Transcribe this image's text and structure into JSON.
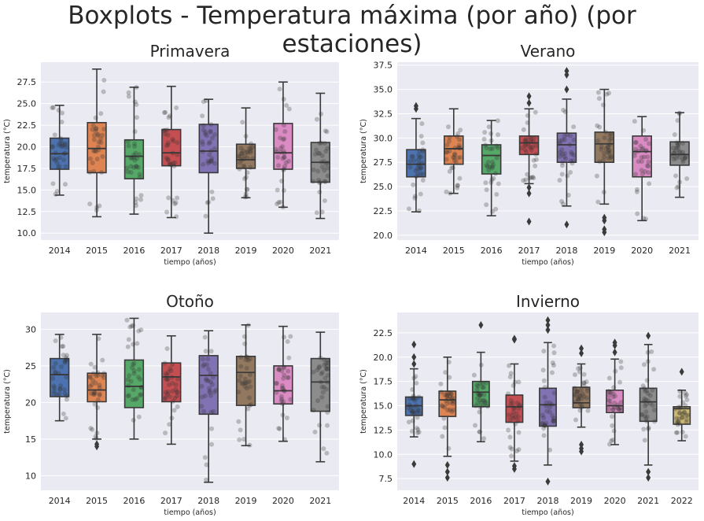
{
  "suptitle": "Boxplots - Temperatura máxima (por año) (por estaciones)",
  "colors": {
    "background": "#eaeaf2",
    "grid": "#ffffff",
    "box_palette": [
      "#4c72b0",
      "#dd8452",
      "#55a868",
      "#c44e52",
      "#8172b3",
      "#937860",
      "#da8bc3",
      "#8c8c8c",
      "#ccb974"
    ],
    "points": "#333333"
  },
  "chart_data": [
    {
      "type": "box",
      "title": "Primavera",
      "xlabel": "tiempo (años)",
      "ylabel": "temperatura (°C)",
      "ylim": [
        9.2,
        29.8
      ],
      "yticks": [
        "10.0",
        "12.5",
        "15.0",
        "17.5",
        "20.0",
        "22.5",
        "25.0",
        "27.5"
      ],
      "grid": true,
      "categories": [
        "2014",
        "2015",
        "2016",
        "2017",
        "2018",
        "2019",
        "2020",
        "2021"
      ],
      "boxes": [
        {
          "min": 14.4,
          "q1": 17.4,
          "median": 19.2,
          "q3": 21.0,
          "max": 24.8,
          "outliers": []
        },
        {
          "min": 11.9,
          "q1": 17.0,
          "median": 19.8,
          "q3": 22.8,
          "max": 29.0,
          "outliers": []
        },
        {
          "min": 12.2,
          "q1": 16.3,
          "median": 18.9,
          "q3": 20.8,
          "max": 26.9,
          "outliers": []
        },
        {
          "min": 11.8,
          "q1": 17.8,
          "median": 19.3,
          "q3": 22.0,
          "max": 27.0,
          "outliers": []
        },
        {
          "min": 10.0,
          "q1": 17.0,
          "median": 19.5,
          "q3": 22.6,
          "max": 25.5,
          "outliers": []
        },
        {
          "min": 14.1,
          "q1": 17.5,
          "median": 18.5,
          "q3": 20.3,
          "max": 24.5,
          "outliers": []
        },
        {
          "min": 13.0,
          "q1": 17.4,
          "median": 19.3,
          "q3": 22.7,
          "max": 27.5,
          "outliers": []
        },
        {
          "min": 11.7,
          "q1": 15.9,
          "median": 18.2,
          "q3": 20.5,
          "max": 26.2,
          "outliers": []
        }
      ]
    },
    {
      "type": "box",
      "title": "Verano",
      "xlabel": "tiempo (años)",
      "ylabel": "temperatura (°C)",
      "ylim": [
        19.5,
        37.8
      ],
      "yticks": [
        "20.0",
        "22.5",
        "25.0",
        "27.5",
        "30.0",
        "32.5",
        "35.0",
        "37.5"
      ],
      "grid": true,
      "categories": [
        "2014",
        "2015",
        "2016",
        "2017",
        "2018",
        "2019",
        "2020",
        "2021"
      ],
      "boxes": [
        {
          "min": 22.4,
          "q1": 26.0,
          "median": 27.3,
          "q3": 28.8,
          "max": 32.0,
          "outliers": [
            33.0,
            33.3
          ]
        },
        {
          "min": 24.3,
          "q1": 27.3,
          "median": 28.9,
          "q3": 30.2,
          "max": 33.0,
          "outliers": []
        },
        {
          "min": 22.0,
          "q1": 26.3,
          "median": 28.2,
          "q3": 29.3,
          "max": 31.8,
          "outliers": []
        },
        {
          "min": 25.3,
          "q1": 28.3,
          "median": 29.5,
          "q3": 30.2,
          "max": 33.0,
          "outliers": [
            21.4,
            24.3,
            24.9,
            33.6,
            34.3
          ]
        },
        {
          "min": 23.0,
          "q1": 27.5,
          "median": 29.3,
          "q3": 30.5,
          "max": 34.0,
          "outliers": [
            21.1,
            35.0,
            36.5,
            36.9
          ]
        },
        {
          "min": 23.2,
          "q1": 27.5,
          "median": 29.4,
          "q3": 30.6,
          "max": 35.0,
          "outliers": [
            20.3,
            20.6,
            21.5,
            21.8
          ]
        },
        {
          "min": 21.5,
          "q1": 26.0,
          "median": 28.6,
          "q3": 30.2,
          "max": 32.2,
          "outliers": []
        },
        {
          "min": 23.9,
          "q1": 27.2,
          "median": 28.3,
          "q3": 29.6,
          "max": 32.6,
          "outliers": []
        }
      ]
    },
    {
      "type": "box",
      "title": "Otoño",
      "xlabel": "tiempo (años)",
      "ylabel": "temperatura (°C)",
      "ylim": [
        8.0,
        32.3
      ],
      "yticks": [
        "10",
        "15",
        "20",
        "25",
        "30"
      ],
      "grid": true,
      "categories": [
        "2014",
        "2015",
        "2016",
        "2017",
        "2018",
        "2019",
        "2020",
        "2021"
      ],
      "boxes": [
        {
          "min": 17.5,
          "q1": 20.8,
          "median": 23.8,
          "q3": 26.0,
          "max": 29.3,
          "outliers": []
        },
        {
          "min": 15.0,
          "q1": 20.1,
          "median": 21.7,
          "q3": 24.0,
          "max": 29.3,
          "outliers": [
            14.0,
            14.3
          ]
        },
        {
          "min": 15.0,
          "q1": 19.3,
          "median": 22.2,
          "q3": 25.8,
          "max": 31.5,
          "outliers": []
        },
        {
          "min": 14.3,
          "q1": 20.1,
          "median": 23.5,
          "q3": 25.4,
          "max": 29.1,
          "outliers": []
        },
        {
          "min": 9.1,
          "q1": 18.4,
          "median": 23.7,
          "q3": 26.4,
          "max": 29.8,
          "outliers": []
        },
        {
          "min": 14.1,
          "q1": 19.6,
          "median": 24.1,
          "q3": 26.3,
          "max": 30.6,
          "outliers": []
        },
        {
          "min": 14.7,
          "q1": 19.8,
          "median": 21.6,
          "q3": 25.0,
          "max": 30.4,
          "outliers": []
        },
        {
          "min": 11.9,
          "q1": 18.8,
          "median": 22.8,
          "q3": 26.0,
          "max": 29.6,
          "outliers": []
        }
      ]
    },
    {
      "type": "box",
      "title": "Invierno",
      "xlabel": "tiempo (años)",
      "ylabel": "temperatura (°C)",
      "ylim": [
        6.3,
        24.6
      ],
      "yticks": [
        "7.5",
        "10.0",
        "12.5",
        "15.0",
        "17.5",
        "20.0",
        "22.5"
      ],
      "grid": true,
      "categories": [
        "2014",
        "2015",
        "2016",
        "2017",
        "2018",
        "2019",
        "2020",
        "2021",
        "2022"
      ],
      "boxes": [
        {
          "min": 11.8,
          "q1": 14.0,
          "median": 15.0,
          "q3": 15.9,
          "max": 18.8,
          "outliers": [
            9.0,
            19.3,
            20.0,
            21.3
          ]
        },
        {
          "min": 9.8,
          "q1": 13.9,
          "median": 15.6,
          "q3": 16.5,
          "max": 20.0,
          "outliers": [
            7.6,
            8.2,
            8.9
          ]
        },
        {
          "min": 11.3,
          "q1": 14.9,
          "median": 16.4,
          "q3": 17.5,
          "max": 20.5,
          "outliers": [
            23.3
          ]
        },
        {
          "min": 9.3,
          "q1": 13.3,
          "median": 14.9,
          "q3": 16.1,
          "max": 19.3,
          "outliers": [
            8.5,
            8.8,
            21.8,
            21.9
          ]
        },
        {
          "min": 8.9,
          "q1": 12.9,
          "median": 15.1,
          "q3": 16.8,
          "max": 21.5,
          "outliers": [
            7.2,
            22.8,
            23.3,
            23.8
          ]
        },
        {
          "min": 12.8,
          "q1": 14.8,
          "median": 15.3,
          "q3": 16.9,
          "max": 19.3,
          "outliers": [
            10.3,
            10.6,
            11.0,
            20.4,
            20.9
          ]
        },
        {
          "min": 11.0,
          "q1": 14.3,
          "median": 15.0,
          "q3": 16.6,
          "max": 19.8,
          "outliers": [
            20.5,
            21.2,
            21.5
          ]
        },
        {
          "min": 8.9,
          "q1": 13.4,
          "median": 15.4,
          "q3": 16.8,
          "max": 21.3,
          "outliers": [
            7.6,
            8.2,
            22.2
          ]
        },
        {
          "min": 11.4,
          "q1": 13.1,
          "median": 14.7,
          "q3": 14.9,
          "max": 16.6,
          "outliers": [
            18.5
          ]
        }
      ]
    }
  ]
}
